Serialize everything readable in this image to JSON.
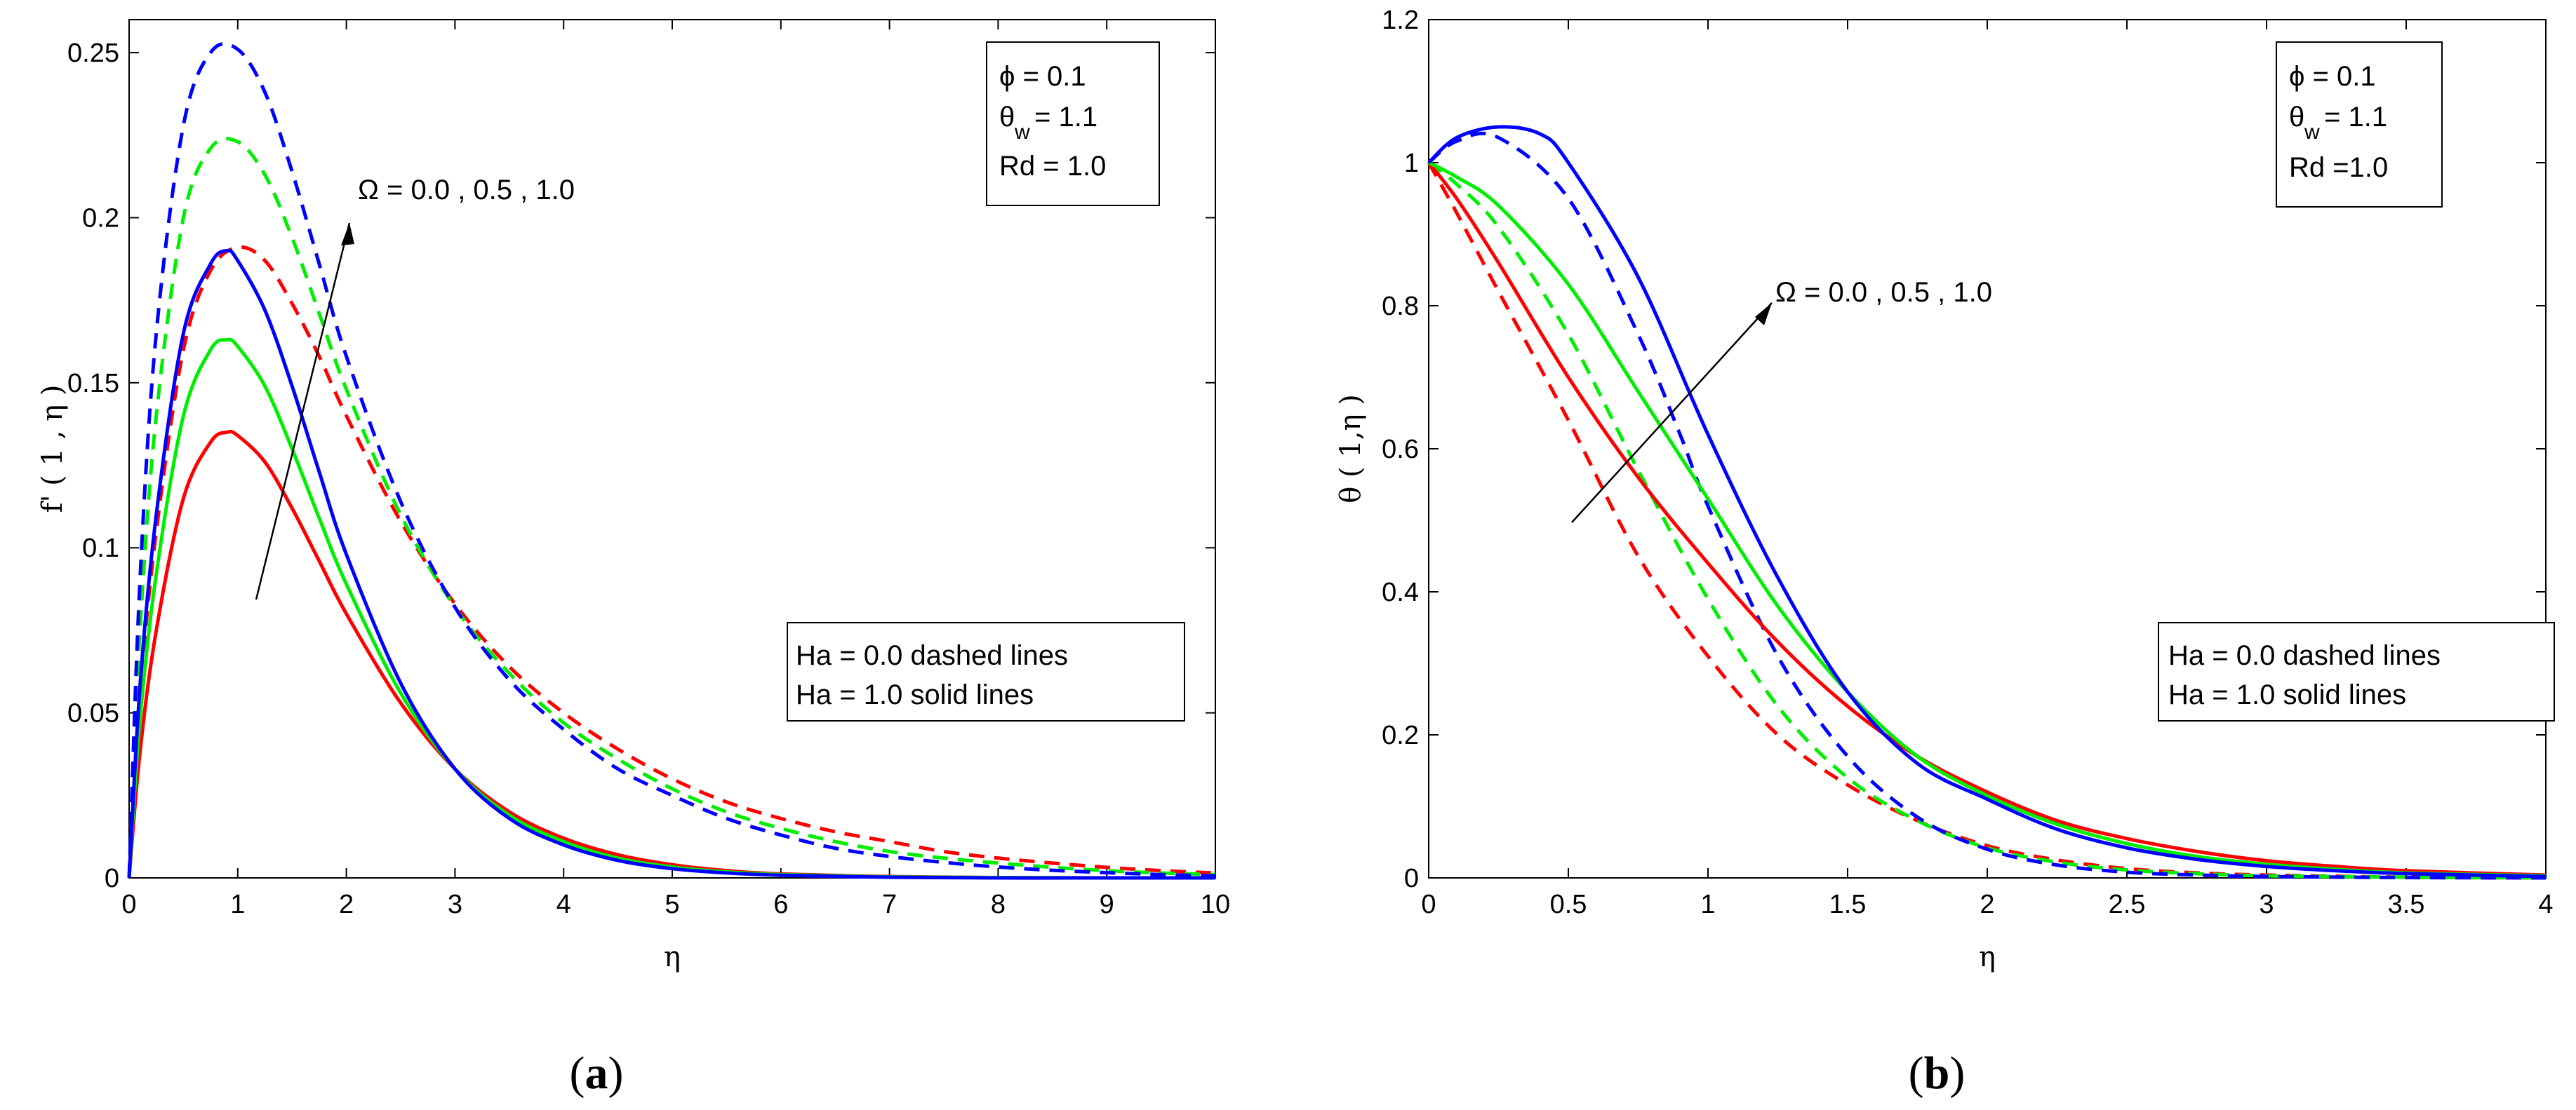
{
  "captions": {
    "a_open": "(",
    "a_letter": "a",
    "a_close": ")",
    "b_open": "(",
    "b_letter": "b",
    "b_close": ")"
  },
  "chart_data": [
    {
      "type": "line",
      "panel": "a",
      "title": "",
      "xlabel": "η",
      "ylabel": "f' ( 1 , η )",
      "xlim": [
        0,
        10
      ],
      "ylim": [
        0,
        0.26
      ],
      "xticks": [
        "0",
        "1",
        "2",
        "3",
        "4",
        "5",
        "6",
        "7",
        "8",
        "9",
        "10"
      ],
      "yticks": [
        "0",
        "0.05",
        "0.1",
        "0.15",
        "0.2",
        "0.25"
      ],
      "params": [
        "ϕ  = 0.1",
        "θ",
        "w",
        "= 1.1",
        "Rd  = 1.0"
      ],
      "arrow_label": "Ω = 0.0 , 0.5 , 1.0",
      "legend_lines": [
        "Ha = 0.0  dashed lines",
        "Ha = 1.0  solid lines"
      ],
      "series": [
        {
          "name": "Ha=0.0, Ω=0.0",
          "color": "#ff0000",
          "style": "dashed",
          "x": [
            0,
            0.1,
            0.25,
            0.5,
            0.75,
            1.0,
            1.25,
            1.5,
            1.75,
            2,
            2.5,
            3,
            3.5,
            4,
            4.5,
            5,
            5.5,
            6,
            6.5,
            7,
            7.5,
            8,
            8.5,
            9,
            9.5,
            10
          ],
          "y": [
            0,
            0.055,
            0.105,
            0.16,
            0.184,
            0.191,
            0.187,
            0.174,
            0.158,
            0.14,
            0.108,
            0.083,
            0.064,
            0.05,
            0.039,
            0.03,
            0.023,
            0.018,
            0.014,
            0.011,
            0.008,
            0.006,
            0.0045,
            0.0032,
            0.0022,
            0.0015
          ]
        },
        {
          "name": "Ha=0.0, Ω=0.5",
          "color": "#00ee00",
          "style": "dashed",
          "x": [
            0,
            0.1,
            0.25,
            0.5,
            0.75,
            1.0,
            1.25,
            1.5,
            1.75,
            2,
            2.5,
            3,
            3.5,
            4,
            4.5,
            5,
            5.5,
            6,
            6.5,
            7,
            7.5,
            8,
            8.5,
            9,
            9.5,
            10
          ],
          "y": [
            0,
            0.075,
            0.14,
            0.2,
            0.221,
            0.223,
            0.213,
            0.194,
            0.171,
            0.148,
            0.11,
            0.082,
            0.062,
            0.047,
            0.036,
            0.027,
            0.02,
            0.015,
            0.011,
            0.008,
            0.006,
            0.0045,
            0.0032,
            0.0022,
            0.0015,
            0.001
          ]
        },
        {
          "name": "Ha=0.0, Ω=1.0",
          "color": "#0000ff",
          "style": "dashed",
          "x": [
            0,
            0.1,
            0.25,
            0.5,
            0.75,
            1.0,
            1.25,
            1.5,
            1.75,
            2,
            2.5,
            3,
            3.5,
            4,
            4.5,
            5,
            5.5,
            6,
            6.5,
            7,
            7.5,
            8,
            8.5,
            9,
            9.5,
            10
          ],
          "y": [
            0,
            0.09,
            0.165,
            0.228,
            0.25,
            0.251,
            0.238,
            0.214,
            0.186,
            0.158,
            0.114,
            0.082,
            0.06,
            0.045,
            0.033,
            0.025,
            0.018,
            0.013,
            0.009,
            0.0065,
            0.0047,
            0.0033,
            0.0023,
            0.0016,
            0.001,
            0.0006
          ]
        },
        {
          "name": "Ha=1.0, Ω=0.0",
          "color": "#ff0000",
          "style": "solid",
          "x": [
            0,
            0.1,
            0.25,
            0.5,
            0.75,
            0.9,
            1.0,
            1.25,
            1.5,
            1.75,
            2,
            2.5,
            3,
            3.5,
            4,
            4.5,
            5,
            5.5,
            6,
            7,
            8,
            9,
            10
          ],
          "y": [
            0,
            0.038,
            0.075,
            0.115,
            0.132,
            0.135,
            0.134,
            0.126,
            0.112,
            0.096,
            0.08,
            0.053,
            0.033,
            0.02,
            0.012,
            0.007,
            0.004,
            0.0022,
            0.0012,
            0.0004,
            0.0001,
            0,
            0
          ]
        },
        {
          "name": "Ha=1.0, Ω=0.5",
          "color": "#00ee00",
          "style": "solid",
          "x": [
            0,
            0.1,
            0.25,
            0.5,
            0.75,
            0.9,
            1.0,
            1.25,
            1.5,
            1.75,
            2,
            2.5,
            3,
            3.5,
            4,
            4.5,
            5,
            5.5,
            6,
            7,
            8,
            9,
            10
          ],
          "y": [
            0,
            0.048,
            0.092,
            0.14,
            0.16,
            0.163,
            0.161,
            0.149,
            0.13,
            0.109,
            0.089,
            0.056,
            0.033,
            0.019,
            0.011,
            0.006,
            0.0033,
            0.0018,
            0.001,
            0.0003,
            0.0001,
            0,
            0
          ]
        },
        {
          "name": "Ha=1.0, Ω=1.0",
          "color": "#0000ff",
          "style": "solid",
          "x": [
            0,
            0.1,
            0.25,
            0.5,
            0.75,
            0.9,
            1.0,
            1.25,
            1.5,
            1.75,
            2,
            2.5,
            3,
            3.5,
            4,
            4.5,
            5,
            5.5,
            6,
            7,
            8,
            9,
            10
          ],
          "y": [
            0,
            0.058,
            0.11,
            0.165,
            0.186,
            0.19,
            0.187,
            0.172,
            0.149,
            0.123,
            0.098,
            0.059,
            0.033,
            0.018,
            0.01,
            0.0053,
            0.0028,
            0.0015,
            0.0008,
            0.0002,
            0,
            0,
            0
          ]
        }
      ]
    },
    {
      "type": "line",
      "panel": "b",
      "title": "",
      "xlabel": "η",
      "ylabel": "θ ( 1,η )",
      "xlim": [
        0,
        4
      ],
      "ylim": [
        0,
        1.2
      ],
      "xticks": [
        "0",
        "0.5",
        "1",
        "1.5",
        "2",
        "2.5",
        "3",
        "3.5",
        "4"
      ],
      "yticks": [
        "0",
        "0.2",
        "0.4",
        "0.6",
        "0.8",
        "1",
        "1.2"
      ],
      "params": [
        "ϕ  = 0.1",
        "θ",
        "w",
        "= 1.1",
        "Rd =1.0"
      ],
      "arrow_label": "Ω = 0.0 , 0.5 , 1.0",
      "legend_lines": [
        "Ha = 0.0  dashed lines",
        "Ha = 1.0  solid lines"
      ],
      "series": [
        {
          "name": "Ha=0.0, Ω=0.0",
          "color": "#ff0000",
          "style": "dashed",
          "x": [
            0,
            0.1,
            0.25,
            0.5,
            0.75,
            1.0,
            1.25,
            1.5,
            1.75,
            2.0,
            2.25,
            2.5,
            2.75,
            3.0,
            3.5,
            4.0
          ],
          "y": [
            1.0,
            0.93,
            0.82,
            0.64,
            0.45,
            0.31,
            0.2,
            0.13,
            0.08,
            0.045,
            0.025,
            0.013,
            0.007,
            0.004,
            0.001,
            0.0
          ]
        },
        {
          "name": "Ha=0.0, Ω=0.5",
          "color": "#00ee00",
          "style": "dashed",
          "x": [
            0,
            0.1,
            0.25,
            0.5,
            0.75,
            1.0,
            1.25,
            1.5,
            1.75,
            2.0,
            2.25,
            2.5,
            2.75,
            3.0,
            3.5,
            4.0
          ],
          "y": [
            1.0,
            0.97,
            0.91,
            0.76,
            0.57,
            0.39,
            0.24,
            0.14,
            0.08,
            0.042,
            0.022,
            0.011,
            0.006,
            0.003,
            0.001,
            0.0
          ]
        },
        {
          "name": "Ha=0.0, Ω=1.0",
          "color": "#0000ff",
          "style": "dashed",
          "x": [
            0,
            0.1,
            0.25,
            0.5,
            0.75,
            0.9,
            1.0,
            1.25,
            1.5,
            1.75,
            2.0,
            2.25,
            2.5,
            2.75,
            3.0,
            3.5,
            4.0
          ],
          "y": [
            1.0,
            1.03,
            1.035,
            0.95,
            0.76,
            0.62,
            0.52,
            0.31,
            0.17,
            0.085,
            0.04,
            0.018,
            0.008,
            0.004,
            0.002,
            0.0005,
            0.0
          ]
        },
        {
          "name": "Ha=1.0, Ω=0.0",
          "color": "#ff0000",
          "style": "solid",
          "x": [
            0,
            0.1,
            0.25,
            0.5,
            0.75,
            1.0,
            1.25,
            1.5,
            1.75,
            2.0,
            2.25,
            2.5,
            2.75,
            3.0,
            3.25,
            3.5,
            4.0
          ],
          "y": [
            1.0,
            0.95,
            0.86,
            0.7,
            0.56,
            0.44,
            0.33,
            0.24,
            0.17,
            0.12,
            0.08,
            0.055,
            0.037,
            0.024,
            0.016,
            0.01,
            0.004
          ]
        },
        {
          "name": "Ha=1.0, Ω=0.5",
          "color": "#00ee00",
          "style": "solid",
          "x": [
            0,
            0.1,
            0.25,
            0.5,
            0.75,
            1.0,
            1.25,
            1.5,
            1.75,
            2.0,
            2.25,
            2.5,
            2.75,
            3.0,
            3.25,
            3.5,
            4.0
          ],
          "y": [
            1.0,
            0.98,
            0.94,
            0.83,
            0.68,
            0.53,
            0.38,
            0.26,
            0.17,
            0.115,
            0.075,
            0.048,
            0.03,
            0.019,
            0.012,
            0.007,
            0.003
          ]
        },
        {
          "name": "Ha=1.0, Ω=1.0",
          "color": "#0000ff",
          "style": "solid",
          "x": [
            0,
            0.1,
            0.25,
            0.4,
            0.5,
            0.75,
            1.0,
            1.25,
            1.5,
            1.75,
            2.0,
            2.25,
            2.5,
            2.75,
            3.0,
            3.25,
            3.5,
            4.0
          ],
          "y": [
            1.0,
            1.035,
            1.05,
            1.04,
            1.0,
            0.84,
            0.62,
            0.42,
            0.26,
            0.16,
            0.11,
            0.068,
            0.042,
            0.026,
            0.016,
            0.01,
            0.006,
            0.002
          ]
        }
      ]
    }
  ]
}
